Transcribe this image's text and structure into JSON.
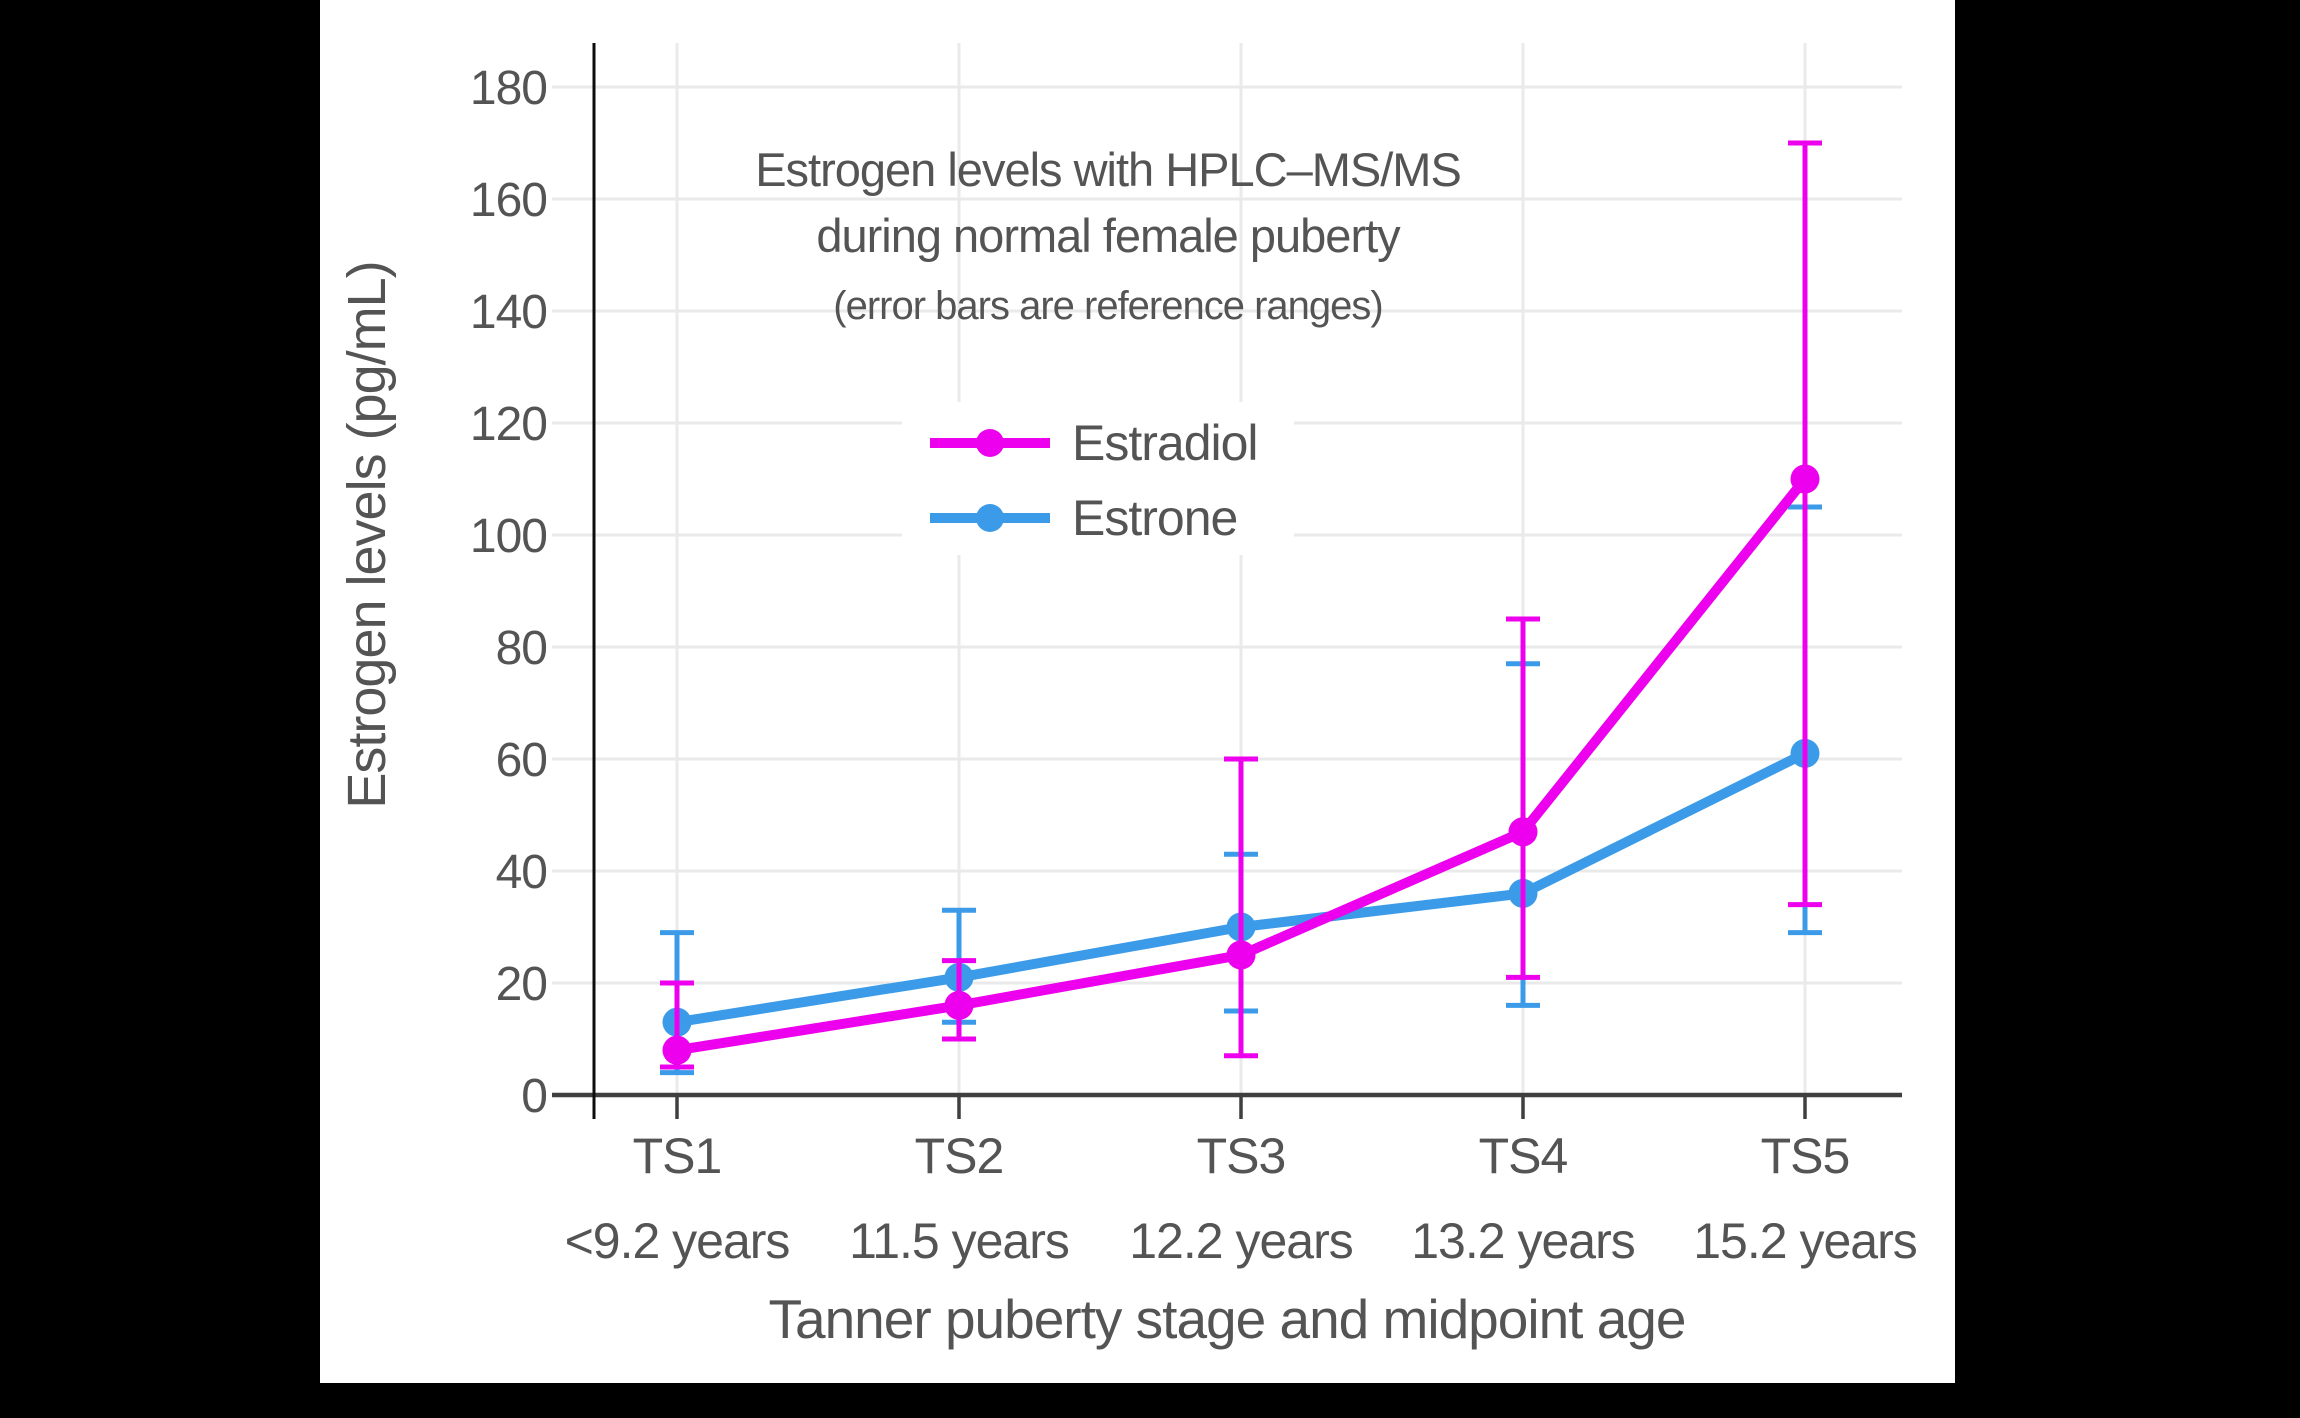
{
  "figure": {
    "background_color": "#000000",
    "panel_color": "#ffffff",
    "text_color": "#545454",
    "grid_color": "#eaeaea",
    "x_axis_color": "#3f3f3f",
    "y_axis_color": "#0d0d0d"
  },
  "chart_data": {
    "type": "line",
    "title": "Estrogen levels with HPLC–MS/MS",
    "title_line2": "during normal female puberty",
    "subtitle": "(error bars are reference ranges)",
    "xlabel": "Tanner puberty stage and midpoint age",
    "ylabel": "Estrogen levels (pg/mL)",
    "categories": [
      "TS1",
      "TS2",
      "TS3",
      "TS4",
      "TS5"
    ],
    "category_sublabels": [
      "<9.2 years",
      "11.5 years",
      "12.2 years",
      "13.2 years",
      "15.2 years"
    ],
    "y_ticks": [
      0,
      20,
      40,
      60,
      80,
      100,
      120,
      140,
      160,
      180
    ],
    "ylim": [
      0,
      188
    ],
    "grid": true,
    "legend_position": "inside-upper-left",
    "error_bar_meaning": "reference ranges",
    "series": [
      {
        "name": "Estradiol",
        "color": "#ED00ED",
        "values": [
          8,
          16,
          25,
          47,
          110
        ],
        "error_low": [
          5,
          10,
          7,
          21,
          34
        ],
        "error_high": [
          20,
          24,
          60,
          85,
          170
        ]
      },
      {
        "name": "Estrone",
        "color": "#3C9BE8",
        "values": [
          13,
          21,
          30,
          36,
          61
        ],
        "error_low": [
          4,
          13,
          15,
          16,
          29
        ],
        "error_high": [
          29,
          33,
          43,
          77,
          105
        ]
      }
    ]
  }
}
